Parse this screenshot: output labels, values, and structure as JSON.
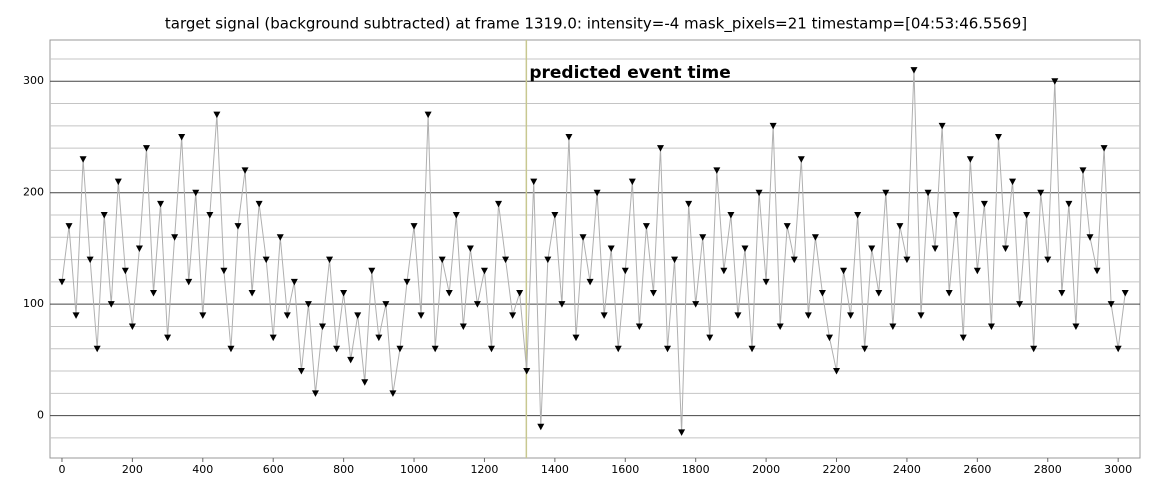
{
  "chart_data": {
    "type": "scatter-line",
    "title": "target signal (background subtracted) at frame 1319.0: intensity=-4 mask_pixels=21 timestamp=[04:53:46.5569]",
    "annotation": "predicted event time",
    "event_x": 1319,
    "xlim": [
      -34,
      3062
    ],
    "ylim": [
      -38,
      337
    ],
    "xticks": [
      0,
      200,
      400,
      600,
      800,
      1000,
      1200,
      1400,
      1600,
      1800,
      2000,
      2200,
      2400,
      2600,
      2800,
      3000
    ],
    "yticks": [
      0,
      100,
      200,
      300
    ],
    "y_minor_ticks": [
      -20,
      20,
      40,
      60,
      80,
      120,
      140,
      160,
      180,
      220,
      240,
      260,
      280,
      320
    ],
    "color": "#000000",
    "line_color": "#b0b0b0",
    "event_color": "#c8c890",
    "grid": true,
    "x": [
      0,
      20,
      40,
      60,
      80,
      100,
      120,
      140,
      160,
      180,
      200,
      220,
      240,
      260,
      280,
      300,
      320,
      340,
      360,
      380,
      400,
      420,
      440,
      460,
      480,
      500,
      520,
      540,
      560,
      580,
      600,
      620,
      640,
      660,
      680,
      700,
      720,
      740,
      760,
      780,
      800,
      820,
      840,
      860,
      880,
      900,
      920,
      940,
      960,
      980,
      1000,
      1020,
      1040,
      1060,
      1080,
      1100,
      1120,
      1140,
      1160,
      1180,
      1200,
      1220,
      1240,
      1260,
      1280,
      1300,
      1320,
      1340,
      1360,
      1380,
      1400,
      1420,
      1440,
      1460,
      1480,
      1500,
      1520,
      1540,
      1560,
      1580,
      1600,
      1620,
      1640,
      1660,
      1680,
      1700,
      1720,
      1740,
      1760,
      1780,
      1800,
      1820,
      1840,
      1860,
      1880,
      1900,
      1920,
      1940,
      1960,
      1980,
      2000,
      2020,
      2040,
      2060,
      2080,
      2100,
      2120,
      2140,
      2160,
      2180,
      2200,
      2220,
      2240,
      2260,
      2280,
      2300,
      2320,
      2340,
      2360,
      2380,
      2400,
      2420,
      2440,
      2460,
      2480,
      2500,
      2520,
      2540,
      2560,
      2580,
      2600,
      2620,
      2640,
      2660,
      2680,
      2700,
      2720,
      2740,
      2760,
      2780,
      2800,
      2820,
      2840,
      2860,
      2880,
      2900,
      2920,
      2940,
      2960,
      2980,
      3000,
      3020
    ],
    "values": [
      120,
      170,
      90,
      230,
      140,
      60,
      180,
      100,
      210,
      130,
      80,
      150,
      240,
      110,
      190,
      70,
      160,
      250,
      120,
      200,
      90,
      180,
      270,
      130,
      60,
      170,
      220,
      110,
      190,
      140,
      70,
      160,
      90,
      120,
      40,
      100,
      20,
      80,
      140,
      60,
      110,
      50,
      90,
      30,
      130,
      70,
      100,
      20,
      60,
      120,
      170,
      90,
      270,
      60,
      140,
      110,
      180,
      80,
      150,
      100,
      130,
      60,
      190,
      140,
      90,
      110,
      40,
      210,
      -10,
      140,
      180,
      100,
      250,
      70,
      160,
      120,
      200,
      90,
      150,
      60,
      130,
      210,
      80,
      170,
      110,
      240,
      60,
      140,
      -15,
      190,
      100,
      160,
      70,
      220,
      130,
      180,
      90,
      150,
      60,
      200,
      120,
      260,
      80,
      170,
      140,
      230,
      90,
      160,
      110,
      70,
      40,
      130,
      90,
      180,
      60,
      150,
      110,
      200,
      80,
      170,
      140,
      310,
      90,
      200,
      150,
      260,
      110,
      180,
      70,
      230,
      130,
      190,
      80,
      250,
      150,
      210,
      100,
      180,
      60,
      200,
      140,
      300,
      110,
      190,
      80,
      220,
      160,
      130,
      240,
      100,
      60,
      110
    ]
  }
}
